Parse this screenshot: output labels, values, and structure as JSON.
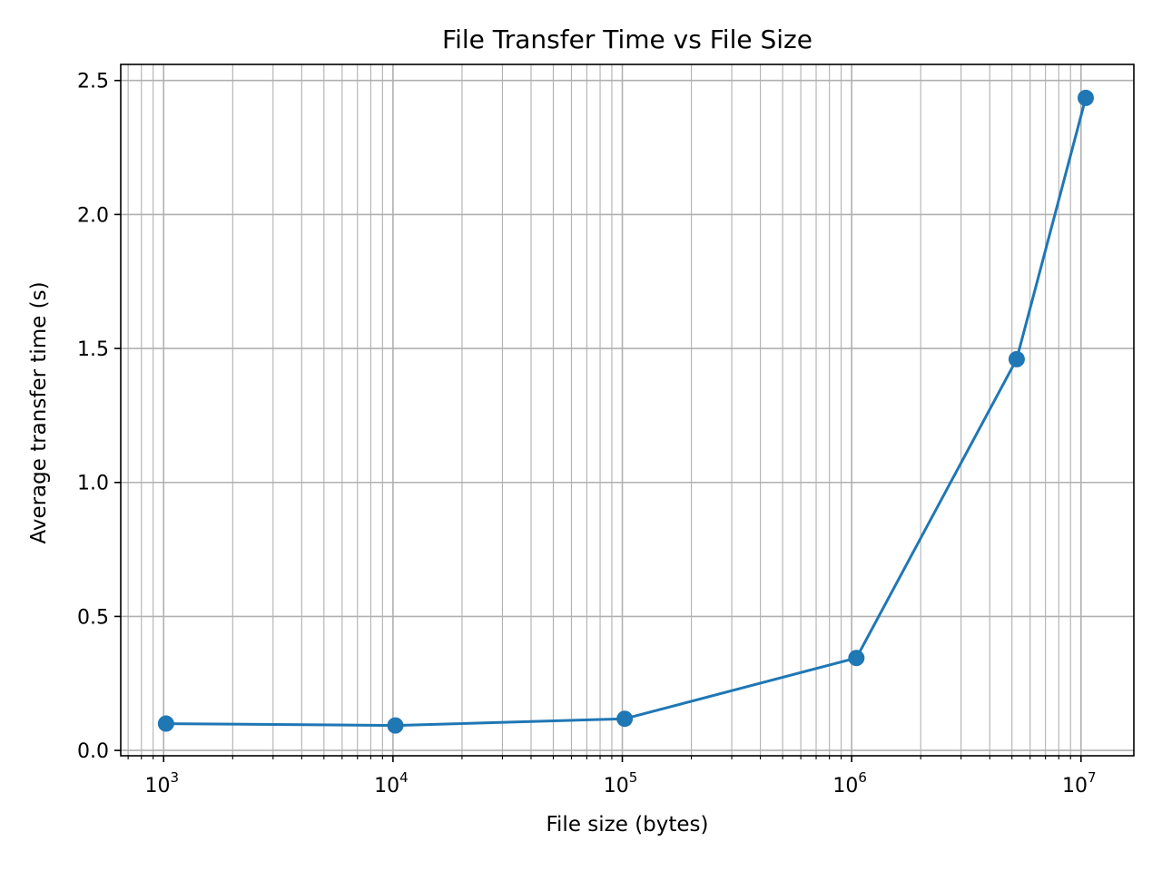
{
  "chart_data": {
    "type": "line",
    "title": "File Transfer Time vs File Size",
    "xlabel": "File size (bytes)",
    "ylabel": "Average transfer time (s)",
    "x_scale": "log",
    "xlim": [
      650,
      17000000
    ],
    "ylim": [
      -0.02,
      2.56
    ],
    "grid": "major and minor",
    "x_ticks": [
      {
        "value": 1000,
        "base": "10",
        "exp": "3"
      },
      {
        "value": 10000,
        "base": "10",
        "exp": "4"
      },
      {
        "value": 100000,
        "base": "10",
        "exp": "5"
      },
      {
        "value": 1000000,
        "base": "10",
        "exp": "6"
      },
      {
        "value": 10000000,
        "base": "10",
        "exp": "7"
      }
    ],
    "y_ticks": [
      {
        "value": 0.0,
        "label": "0.0"
      },
      {
        "value": 0.5,
        "label": "0.5"
      },
      {
        "value": 1.0,
        "label": "1.0"
      },
      {
        "value": 1.5,
        "label": "1.5"
      },
      {
        "value": 2.0,
        "label": "2.0"
      },
      {
        "value": 2.5,
        "label": "2.5"
      }
    ],
    "series": [
      {
        "color": "#1f77b4",
        "marker": "circle",
        "x": [
          1024,
          10240,
          102400,
          1048576,
          5242880,
          10485760
        ],
        "y": [
          0.1,
          0.093,
          0.118,
          0.345,
          1.46,
          2.435
        ]
      }
    ],
    "colors": {
      "grid": "#b0b0b0",
      "axes": "#000000",
      "line": "#1f77b4"
    }
  }
}
